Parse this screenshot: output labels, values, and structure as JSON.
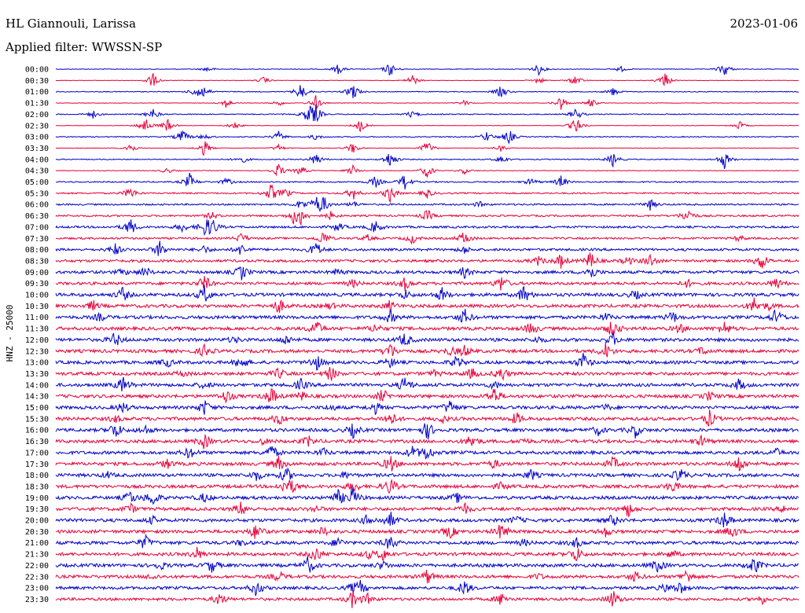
{
  "header": {
    "station": "HL Giannouli, Larissa",
    "date": "2023-01-06",
    "filter": "Applied filter: WWSSN-SP"
  },
  "chart_data": {
    "type": "line",
    "ylabel": "HNZ - 25000",
    "series_colors": [
      "#0000cc",
      "#e8003a"
    ],
    "row_labels": [
      "00:00",
      "00:30",
      "01:00",
      "01:30",
      "02:00",
      "02:30",
      "03:00",
      "03:30",
      "04:00",
      "04:30",
      "05:00",
      "05:30",
      "06:00",
      "06:30",
      "07:00",
      "07:30",
      "08:00",
      "08:30",
      "09:00",
      "09:30",
      "10:00",
      "10:30",
      "11:00",
      "11:30",
      "12:00",
      "12:30",
      "13:00",
      "13:30",
      "14:00",
      "14:30",
      "15:00",
      "15:30",
      "16:00",
      "16:30",
      "17:00",
      "17:30",
      "18:00",
      "18:30",
      "19:00",
      "19:30",
      "20:00",
      "20:30",
      "21:00",
      "21:30",
      "22:00",
      "22:30",
      "23:00",
      "23:30"
    ],
    "noise_level": [
      0.4,
      0.3,
      0.5,
      0.3,
      0.6,
      0.3,
      0.6,
      0.3,
      0.6,
      0.4,
      0.8,
      0.9,
      1.0,
      1.1,
      1.3,
      1.2,
      1.5,
      1.6,
      1.8,
      1.8,
      2.0,
      2.0,
      2.0,
      2.0,
      2.0,
      2.0,
      2.0,
      2.0,
      2.0,
      2.0,
      2.0,
      2.0,
      2.0,
      2.0,
      2.0,
      2.0,
      2.0,
      2.0,
      2.0,
      2.0,
      2.0,
      2.0,
      2.0,
      2.0,
      2.0,
      1.9,
      1.8,
      1.7
    ],
    "bursts": [
      [
        0.205,
        0.38,
        0.9,
        0.76,
        0.65,
        0.45
      ],
      [
        0.13,
        0.28,
        0.48,
        0.82,
        0.65,
        0.7
      ],
      [
        0.19,
        0.33,
        0.75,
        0.6,
        0.4,
        0.2
      ],
      [
        0.23,
        0.35,
        0.55,
        0.72,
        0.68,
        0.3
      ],
      [
        0.05,
        0.13,
        0.34,
        0.48,
        0.7,
        0.35
      ],
      [
        0.12,
        0.24,
        0.41,
        0.7,
        0.92,
        0.15
      ],
      [
        0.17,
        0.35,
        0.58,
        0.61,
        0.2,
        0.3
      ],
      [
        0.1,
        0.2,
        0.3,
        0.4,
        0.5,
        0.6
      ],
      [
        0.25,
        0.35,
        0.45,
        0.6,
        0.75,
        0.9
      ],
      [
        0.15,
        0.33,
        0.5,
        0.55,
        0.4,
        0.3
      ],
      [
        0.18,
        0.23,
        0.43,
        0.47,
        0.64,
        0.68
      ],
      [
        0.1,
        0.29,
        0.31,
        0.4,
        0.45,
        0.5
      ],
      [
        0.33,
        0.36,
        0.57,
        0.8,
        0.35,
        0.4
      ],
      [
        0.21,
        0.32,
        0.33,
        0.37,
        0.5,
        0.85
      ],
      [
        0.1,
        0.17,
        0.2,
        0.21,
        0.38,
        0.43
      ],
      [
        0.36,
        0.42,
        0.48,
        0.55,
        0.92,
        0.25
      ],
      [
        0.08,
        0.14,
        0.2,
        0.25,
        0.35,
        0.55
      ],
      [
        0.65,
        0.68,
        0.72,
        0.77,
        0.8,
        0.95
      ],
      [
        0.09,
        0.12,
        0.25,
        0.38,
        0.55,
        0.72
      ],
      [
        0.2,
        0.4,
        0.47,
        0.6,
        0.85,
        0.97
      ],
      [
        0.09,
        0.2,
        0.47,
        0.52,
        0.63,
        0.78
      ],
      [
        0.05,
        0.3,
        0.37,
        0.45,
        0.94,
        0.96
      ],
      [
        0.06,
        0.45,
        0.55,
        0.74,
        0.83,
        0.97
      ],
      [
        0.35,
        0.43,
        0.64,
        0.75,
        0.84,
        0.9
      ],
      [
        0.08,
        0.24,
        0.31,
        0.47,
        0.65,
        0.75
      ],
      [
        0.2,
        0.45,
        0.53,
        0.55,
        0.74,
        0.87
      ],
      [
        0.15,
        0.25,
        0.35,
        0.45,
        0.54,
        0.71
      ],
      [
        0.17,
        0.3,
        0.37,
        0.51,
        0.56,
        0.6
      ],
      [
        0.09,
        0.2,
        0.33,
        0.47,
        0.59,
        0.92
      ],
      [
        0.23,
        0.29,
        0.33,
        0.44,
        0.59,
        0.88
      ],
      [
        0.09,
        0.2,
        0.37,
        0.43,
        0.53,
        0.74
      ],
      [
        0.08,
        0.3,
        0.45,
        0.52,
        0.62,
        0.88
      ],
      [
        0.08,
        0.12,
        0.4,
        0.5,
        0.73,
        0.78
      ],
      [
        0.2,
        0.28,
        0.34,
        0.56,
        0.63,
        0.87
      ],
      [
        0.18,
        0.29,
        0.36,
        0.48,
        0.5,
        0.97
      ],
      [
        0.15,
        0.3,
        0.45,
        0.59,
        0.75,
        0.92
      ],
      [
        0.07,
        0.27,
        0.31,
        0.39,
        0.64,
        0.84
      ],
      [
        0.31,
        0.32,
        0.4,
        0.45,
        0.6,
        0.83
      ],
      [
        0.1,
        0.13,
        0.2,
        0.38,
        0.4,
        0.54
      ],
      [
        0.1,
        0.25,
        0.35,
        0.55,
        0.77,
        0.98
      ],
      [
        0.13,
        0.42,
        0.45,
        0.62,
        0.75,
        0.9
      ],
      [
        0.27,
        0.36,
        0.53,
        0.6,
        0.74,
        0.91
      ],
      [
        0.12,
        0.25,
        0.38,
        0.45,
        0.63,
        0.7
      ],
      [
        0.19,
        0.35,
        0.42,
        0.44,
        0.7,
        0.83
      ],
      [
        0.14,
        0.21,
        0.34,
        0.44,
        0.81,
        0.94
      ],
      [
        0.13,
        0.3,
        0.5,
        0.65,
        0.78,
        0.85
      ],
      [
        0.27,
        0.4,
        0.41,
        0.55,
        0.82,
        0.84
      ],
      [
        0.22,
        0.4,
        0.42,
        0.6,
        0.75,
        0.95
      ]
    ]
  }
}
